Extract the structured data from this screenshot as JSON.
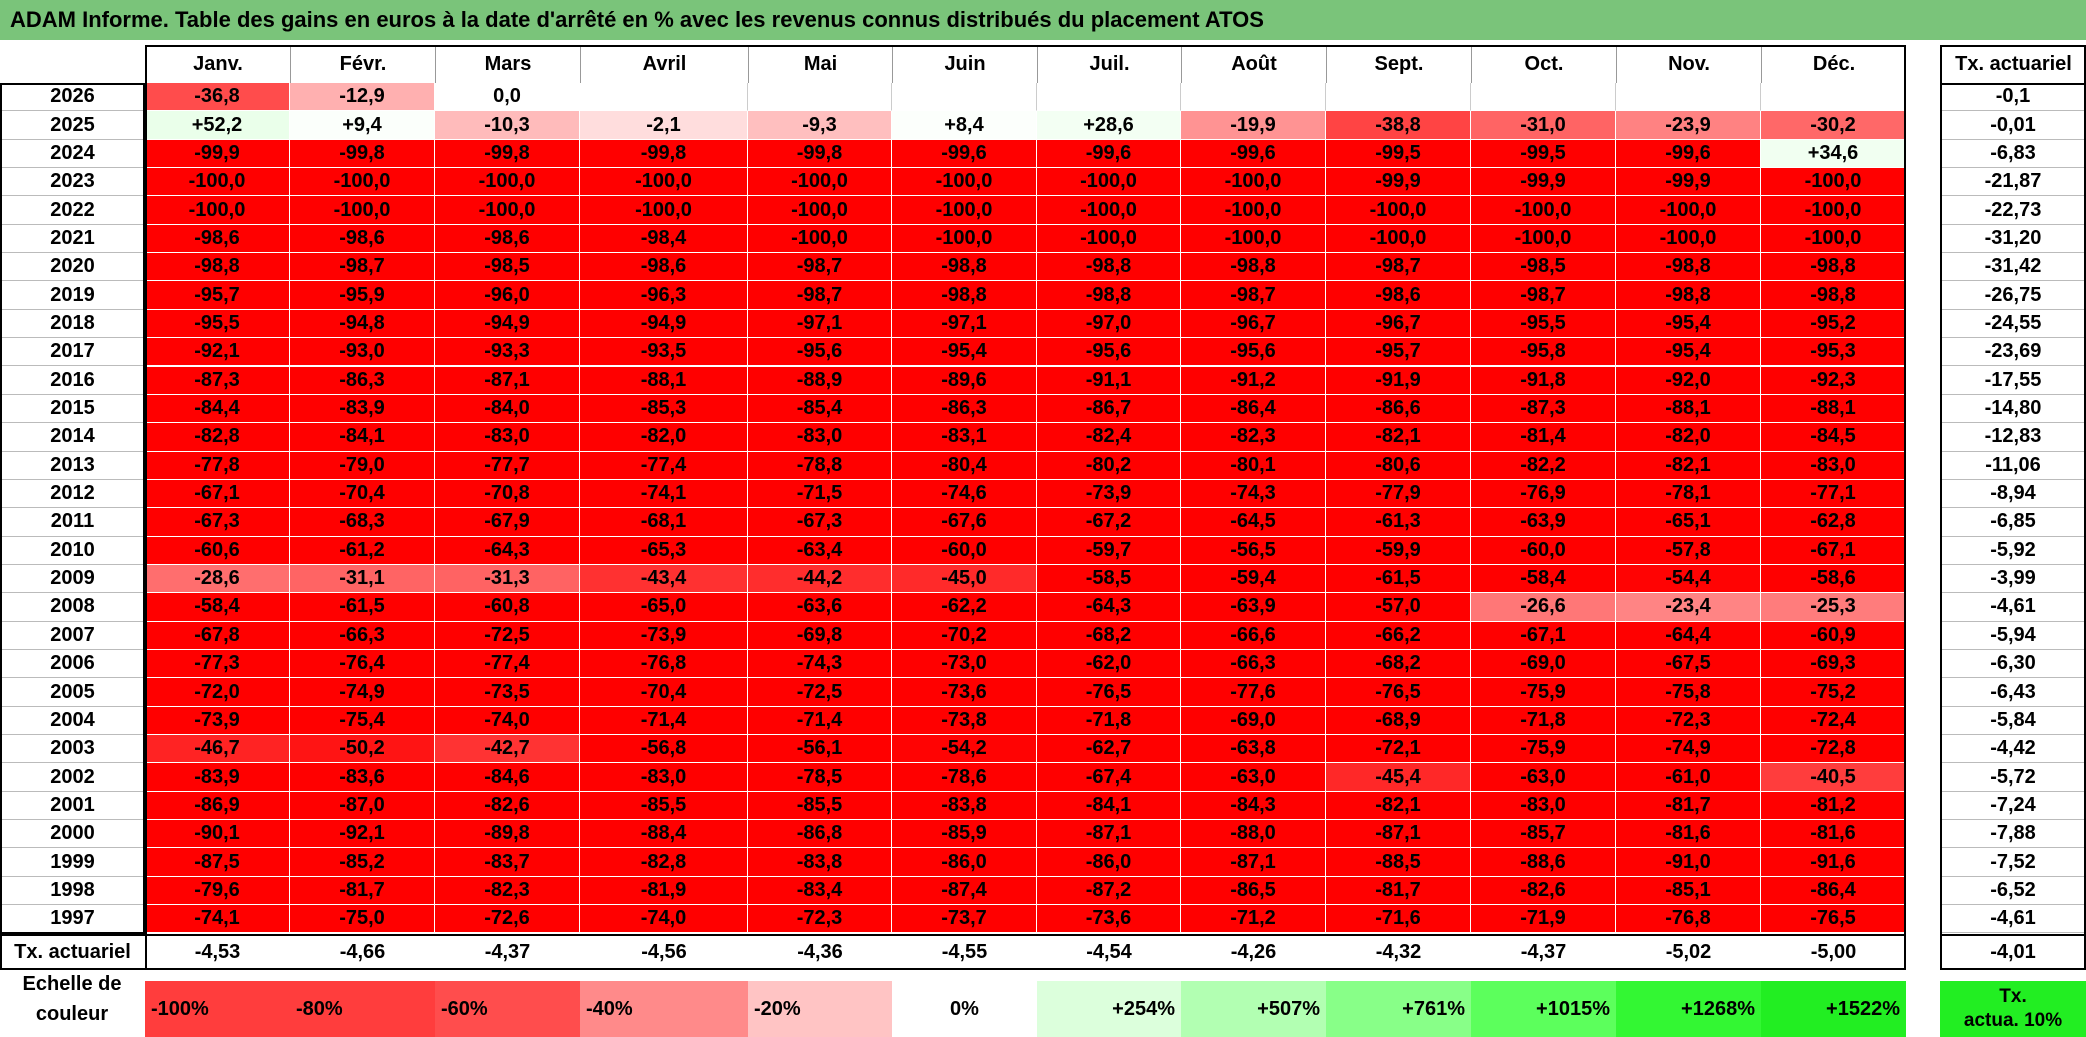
{
  "title": "ADAM Informe. Table des gains en euros à la date d'arrêté en % avec les revenus connus distribués du placement ATOS",
  "tx_col_header": "Tx. actuariel",
  "tx_row_label": "Tx. actuariel",
  "tx_row_values": [
    "-4,53",
    "-4,66",
    "-4,37",
    "-4,56",
    "-4,36",
    "-4,55",
    "-4,54",
    "-4,26",
    "-4,32",
    "-4,37",
    "-5,02",
    "-5,00"
  ],
  "tx_overall": "-4,01",
  "legend_label_line1": "Echelle de",
  "legend_label_line2": "couleur",
  "legend_tx_line1": "Tx.",
  "legend_tx_line2": "actua. 10%",
  "colors": {
    "title_bg": "#7ac47a",
    "loss_max": "#ff0000",
    "gain_max": "#22ee22",
    "white": "#ffffff"
  },
  "chart_data": {
    "type": "heatmap",
    "title": "ADAM Informe. Table des gains en euros à la date d'arrêté en % avec les revenus connus distribués du placement ATOS",
    "months": [
      "Janv.",
      "Févr.",
      "Mars",
      "Avril",
      "Mai",
      "Juin",
      "Juil.",
      "Août",
      "Sept.",
      "Oct.",
      "Nov.",
      "Déc."
    ],
    "rows": [
      {
        "year": "2026",
        "values": [
          "-36,8",
          "-12,9",
          "0,0",
          "",
          "",
          "",
          "",
          "",
          "",
          "",
          "",
          ""
        ],
        "tx": "-0,1"
      },
      {
        "year": "2025",
        "values": [
          "+52,2",
          "+9,4",
          "-10,3",
          "-2,1",
          "-9,3",
          "+8,4",
          "+28,6",
          "-19,9",
          "-38,8",
          "-31,0",
          "-23,9",
          "-30,2"
        ],
        "tx": "-0,01"
      },
      {
        "year": "2024",
        "values": [
          "-99,9",
          "-99,8",
          "-99,8",
          "-99,8",
          "-99,8",
          "-99,6",
          "-99,6",
          "-99,6",
          "-99,5",
          "-99,5",
          "-99,6",
          "+34,6"
        ],
        "tx": "-6,83"
      },
      {
        "year": "2023",
        "values": [
          "-100,0",
          "-100,0",
          "-100,0",
          "-100,0",
          "-100,0",
          "-100,0",
          "-100,0",
          "-100,0",
          "-99,9",
          "-99,9",
          "-99,9",
          "-100,0"
        ],
        "tx": "-21,87"
      },
      {
        "year": "2022",
        "values": [
          "-100,0",
          "-100,0",
          "-100,0",
          "-100,0",
          "-100,0",
          "-100,0",
          "-100,0",
          "-100,0",
          "-100,0",
          "-100,0",
          "-100,0",
          "-100,0"
        ],
        "tx": "-22,73"
      },
      {
        "year": "2021",
        "values": [
          "-98,6",
          "-98,6",
          "-98,6",
          "-98,4",
          "-100,0",
          "-100,0",
          "-100,0",
          "-100,0",
          "-100,0",
          "-100,0",
          "-100,0",
          "-100,0"
        ],
        "tx": "-31,20"
      },
      {
        "year": "2020",
        "values": [
          "-98,8",
          "-98,7",
          "-98,5",
          "-98,6",
          "-98,7",
          "-98,8",
          "-98,8",
          "-98,8",
          "-98,7",
          "-98,5",
          "-98,8",
          "-98,8"
        ],
        "tx": "-31,42"
      },
      {
        "year": "2019",
        "values": [
          "-95,7",
          "-95,9",
          "-96,0",
          "-96,3",
          "-98,7",
          "-98,8",
          "-98,8",
          "-98,7",
          "-98,6",
          "-98,7",
          "-98,8",
          "-98,8"
        ],
        "tx": "-26,75"
      },
      {
        "year": "2018",
        "values": [
          "-95,5",
          "-94,8",
          "-94,9",
          "-94,9",
          "-97,1",
          "-97,1",
          "-97,0",
          "-96,7",
          "-96,7",
          "-95,5",
          "-95,4",
          "-95,2"
        ],
        "tx": "-24,55"
      },
      {
        "year": "2017",
        "values": [
          "-92,1",
          "-93,0",
          "-93,3",
          "-93,5",
          "-95,6",
          "-95,4",
          "-95,6",
          "-95,6",
          "-95,7",
          "-95,8",
          "-95,4",
          "-95,3"
        ],
        "tx": "-23,69"
      },
      {
        "year": "2016",
        "values": [
          "-87,3",
          "-86,3",
          "-87,1",
          "-88,1",
          "-88,9",
          "-89,6",
          "-91,1",
          "-91,2",
          "-91,9",
          "-91,8",
          "-92,0",
          "-92,3"
        ],
        "tx": "-17,55"
      },
      {
        "year": "2015",
        "values": [
          "-84,4",
          "-83,9",
          "-84,0",
          "-85,3",
          "-85,4",
          "-86,3",
          "-86,7",
          "-86,4",
          "-86,6",
          "-87,3",
          "-88,1",
          "-88,1"
        ],
        "tx": "-14,80"
      },
      {
        "year": "2014",
        "values": [
          "-82,8",
          "-84,1",
          "-83,0",
          "-82,0",
          "-83,0",
          "-83,1",
          "-82,4",
          "-82,3",
          "-82,1",
          "-81,4",
          "-82,0",
          "-84,5"
        ],
        "tx": "-12,83"
      },
      {
        "year": "2013",
        "values": [
          "-77,8",
          "-79,0",
          "-77,7",
          "-77,4",
          "-78,8",
          "-80,4",
          "-80,2",
          "-80,1",
          "-80,6",
          "-82,2",
          "-82,1",
          "-83,0"
        ],
        "tx": "-11,06"
      },
      {
        "year": "2012",
        "values": [
          "-67,1",
          "-70,4",
          "-70,8",
          "-74,1",
          "-71,5",
          "-74,6",
          "-73,9",
          "-74,3",
          "-77,9",
          "-76,9",
          "-78,1",
          "-77,1"
        ],
        "tx": "-8,94"
      },
      {
        "year": "2011",
        "values": [
          "-67,3",
          "-68,3",
          "-67,9",
          "-68,1",
          "-67,3",
          "-67,6",
          "-67,2",
          "-64,5",
          "-61,3",
          "-63,9",
          "-65,1",
          "-62,8"
        ],
        "tx": "-6,85"
      },
      {
        "year": "2010",
        "values": [
          "-60,6",
          "-61,2",
          "-64,3",
          "-65,3",
          "-63,4",
          "-60,0",
          "-59,7",
          "-56,5",
          "-59,9",
          "-60,0",
          "-57,8",
          "-67,1"
        ],
        "tx": "-5,92"
      },
      {
        "year": "2009",
        "values": [
          "-28,6",
          "-31,1",
          "-31,3",
          "-43,4",
          "-44,2",
          "-45,0",
          "-58,5",
          "-59,4",
          "-61,5",
          "-58,4",
          "-54,4",
          "-58,6"
        ],
        "tx": "-3,99"
      },
      {
        "year": "2008",
        "values": [
          "-58,4",
          "-61,5",
          "-60,8",
          "-65,0",
          "-63,6",
          "-62,2",
          "-64,3",
          "-63,9",
          "-57,0",
          "-26,6",
          "-23,4",
          "-25,3"
        ],
        "tx": "-4,61"
      },
      {
        "year": "2007",
        "values": [
          "-67,8",
          "-66,3",
          "-72,5",
          "-73,9",
          "-69,8",
          "-70,2",
          "-68,2",
          "-66,6",
          "-66,2",
          "-67,1",
          "-64,4",
          "-60,9"
        ],
        "tx": "-5,94"
      },
      {
        "year": "2006",
        "values": [
          "-77,3",
          "-76,4",
          "-77,4",
          "-76,8",
          "-74,3",
          "-73,0",
          "-62,0",
          "-66,3",
          "-68,2",
          "-69,0",
          "-67,5",
          "-69,3"
        ],
        "tx": "-6,30"
      },
      {
        "year": "2005",
        "values": [
          "-72,0",
          "-74,9",
          "-73,5",
          "-70,4",
          "-72,5",
          "-73,6",
          "-76,5",
          "-77,6",
          "-76,5",
          "-75,9",
          "-75,8",
          "-75,2"
        ],
        "tx": "-6,43"
      },
      {
        "year": "2004",
        "values": [
          "-73,9",
          "-75,4",
          "-74,0",
          "-71,4",
          "-71,4",
          "-73,8",
          "-71,8",
          "-69,0",
          "-68,9",
          "-71,8",
          "-72,3",
          "-72,4"
        ],
        "tx": "-5,84"
      },
      {
        "year": "2003",
        "values": [
          "-46,7",
          "-50,2",
          "-42,7",
          "-56,8",
          "-56,1",
          "-54,2",
          "-62,7",
          "-63,8",
          "-72,1",
          "-75,9",
          "-74,9",
          "-72,8"
        ],
        "tx": "-4,42"
      },
      {
        "year": "2002",
        "values": [
          "-83,9",
          "-83,6",
          "-84,6",
          "-83,0",
          "-78,5",
          "-78,6",
          "-67,4",
          "-63,0",
          "-45,4",
          "-63,0",
          "-61,0",
          "-40,5"
        ],
        "tx": "-5,72"
      },
      {
        "year": "2001",
        "values": [
          "-86,9",
          "-87,0",
          "-82,6",
          "-85,5",
          "-85,5",
          "-83,8",
          "-84,1",
          "-84,3",
          "-82,1",
          "-83,0",
          "-81,7",
          "-81,2"
        ],
        "tx": "-7,24"
      },
      {
        "year": "2000",
        "values": [
          "-90,1",
          "-92,1",
          "-89,8",
          "-88,4",
          "-86,8",
          "-85,9",
          "-87,1",
          "-88,0",
          "-87,1",
          "-85,7",
          "-81,6",
          "-81,6"
        ],
        "tx": "-7,88"
      },
      {
        "year": "1999",
        "values": [
          "-87,5",
          "-85,2",
          "-83,7",
          "-82,8",
          "-83,8",
          "-86,0",
          "-86,0",
          "-87,1",
          "-88,5",
          "-88,6",
          "-91,0",
          "-91,6"
        ],
        "tx": "-7,52"
      },
      {
        "year": "1998",
        "values": [
          "-79,6",
          "-81,7",
          "-82,3",
          "-81,9",
          "-83,4",
          "-87,4",
          "-87,2",
          "-86,5",
          "-81,7",
          "-82,6",
          "-85,1",
          "-86,4"
        ],
        "tx": "-6,52"
      },
      {
        "year": "1997",
        "values": [
          "-74,1",
          "-75,0",
          "-72,6",
          "-74,0",
          "-72,3",
          "-73,7",
          "-73,6",
          "-71,2",
          "-71,6",
          "-71,9",
          "-76,8",
          "-76,5"
        ],
        "tx": "-4,61"
      }
    ],
    "color_scale": {
      "labels": [
        "-100%",
        "-80%",
        "-60%",
        "-40%",
        "-20%",
        "0%",
        "+254%",
        "+507%",
        "+761%",
        "+1015%",
        "+1268%",
        "+1522%"
      ],
      "colors": [
        "#ff3d3d",
        "#ff3d3d",
        "#ff4d4d",
        "#ff8a8a",
        "#ffc4c4",
        "#ffffff",
        "#dcffdc",
        "#b2ffb2",
        "#88ff88",
        "#5cff5c",
        "#33f733",
        "#22ee22"
      ]
    }
  }
}
